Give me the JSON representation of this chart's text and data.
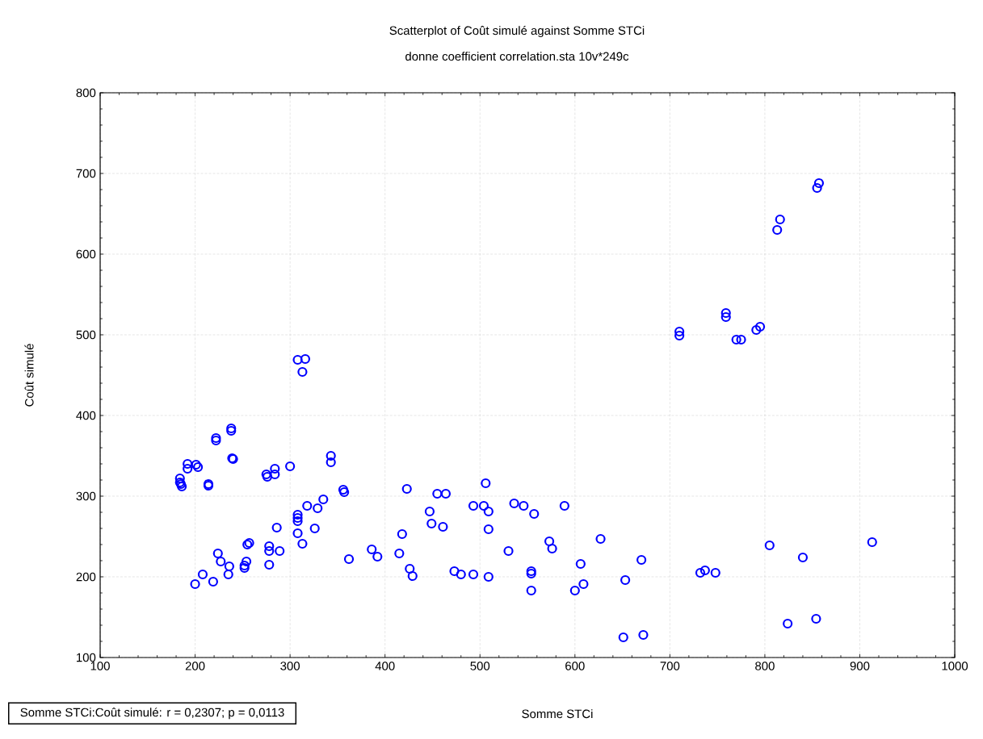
{
  "chart_data": {
    "type": "scatter",
    "title": "Scatterplot of Coût simulé against Somme STCi",
    "subtitle": "donne coefficient correlation.sta 10v*249c",
    "xlabel": "Somme STCi",
    "ylabel": "Coût simulé",
    "annotations": [
      "Somme STCi:Coût simulé:   r = 0,2307; p = 0,0113"
    ],
    "x": [
      308,
      316,
      313,
      238,
      238,
      222,
      222,
      239,
      240,
      192,
      192,
      201,
      203,
      184,
      184,
      186,
      185,
      214,
      214,
      275,
      276,
      284,
      284,
      300,
      343,
      343,
      356,
      357,
      335,
      318,
      329,
      308,
      308,
      308,
      326,
      286,
      308,
      313,
      362,
      255,
      257,
      278,
      278,
      289,
      278,
      224,
      227,
      236,
      235,
      252,
      254,
      252,
      208,
      200,
      219,
      423,
      455,
      464,
      506,
      447,
      449,
      461,
      418,
      493,
      504,
      509,
      509,
      536,
      546,
      557,
      589,
      386,
      392,
      415,
      426,
      429,
      473,
      480,
      493,
      509,
      530,
      554,
      554,
      554,
      573,
      576,
      606,
      609,
      600,
      627,
      816,
      813,
      857,
      855,
      710,
      710,
      759,
      759,
      770,
      775,
      791,
      795,
      653,
      670,
      651,
      672,
      732,
      737,
      748,
      805,
      840,
      824,
      854,
      913
    ],
    "values": [
      469,
      470,
      454,
      384,
      381,
      372,
      369,
      347,
      346,
      340,
      334,
      339,
      336,
      322,
      317,
      312,
      315,
      315,
      313,
      327,
      324,
      334,
      327,
      337,
      350,
      342,
      308,
      305,
      296,
      288,
      285,
      277,
      273,
      269,
      260,
      261,
      254,
      241,
      222,
      240,
      242,
      238,
      232,
      232,
      215,
      229,
      219,
      213,
      203,
      214,
      219,
      211,
      203,
      191,
      194,
      309,
      303,
      303,
      316,
      281,
      266,
      262,
      253,
      288,
      288,
      281,
      259,
      291,
      288,
      278,
      288,
      234,
      225,
      229,
      210,
      201,
      207,
      203,
      203,
      200,
      232,
      207,
      204,
      183,
      244,
      235,
      216,
      191,
      183,
      247,
      643,
      630,
      688,
      682,
      504,
      499,
      527,
      522,
      494,
      494,
      506,
      510,
      196,
      221,
      125,
      128,
      205,
      208,
      205,
      239,
      224,
      142,
      148,
      243
    ],
    "color": "#0000ff",
    "marker": "circle",
    "grid": true,
    "xlim": [
      100,
      1000
    ],
    "xticks": [
      100,
      200,
      300,
      400,
      500,
      600,
      700,
      800,
      900,
      1000
    ],
    "ylim": [
      100,
      800
    ],
    "yticks": [
      100,
      200,
      300,
      400,
      500,
      600,
      700,
      800
    ]
  }
}
